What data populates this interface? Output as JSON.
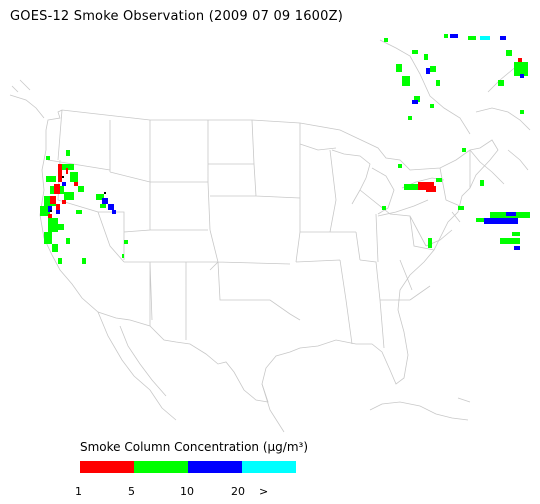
{
  "title": "GOES-12 Smoke Observation (2009 07 09  1600Z)",
  "legend": {
    "title": "Smoke Column Concentration (µg/m³)",
    "bins": [
      {
        "color": "#ff0000"
      },
      {
        "color": "#00ff00"
      },
      {
        "color": "#0000ff"
      },
      {
        "color": "#00ffff"
      }
    ],
    "ticks": [
      "1",
      "5",
      "10",
      "20",
      ">"
    ]
  },
  "map": {
    "region": "Continental United States",
    "boundaries": "US state outlines, Canada and Mexico coastlines"
  }
}
